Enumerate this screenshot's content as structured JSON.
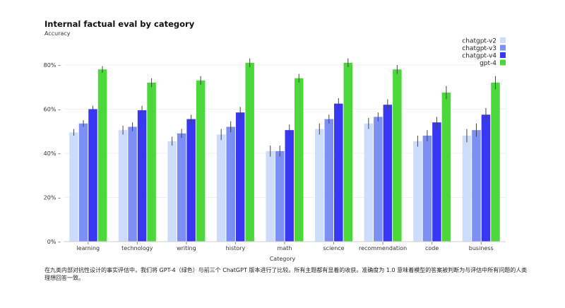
{
  "chart_data": {
    "type": "bar",
    "title": "Internal factual eval by category",
    "ylabel": "Accuracy",
    "xlabel": "Category",
    "ylim": [
      0,
      90
    ],
    "yticks": [
      0,
      20,
      40,
      60,
      80
    ],
    "ytick_labels": [
      "0% –",
      "20% –",
      "40% –",
      "60% –",
      "80% –"
    ],
    "grid": true,
    "legend_position": "top-right",
    "categories": [
      "learning",
      "technology",
      "writing",
      "history",
      "math",
      "science",
      "recommendation",
      "code",
      "business"
    ],
    "series": [
      {
        "name": "chatgpt-v2",
        "color": "#ccdcfa",
        "values": [
          49.5,
          50.5,
          45.5,
          48.5,
          41,
          51,
          53.5,
          45.5,
          48
        ],
        "errors": [
          1.5,
          2,
          2,
          2.5,
          2.5,
          2.5,
          2.5,
          2.5,
          3
        ]
      },
      {
        "name": "chatgpt-v3",
        "color": "#7b8ff4",
        "values": [
          53.5,
          52,
          49,
          52,
          41,
          55.5,
          56.5,
          48,
          50.5
        ],
        "errors": [
          1.5,
          2,
          2,
          2.5,
          2.5,
          2,
          2,
          2.5,
          3
        ]
      },
      {
        "name": "chatgpt-v4",
        "color": "#3838f2",
        "values": [
          60,
          59.5,
          55.5,
          58.5,
          50.5,
          62.5,
          62,
          54,
          57.5
        ],
        "errors": [
          1.5,
          2,
          2,
          2.5,
          2.5,
          2.5,
          2.5,
          2.5,
          3
        ]
      },
      {
        "name": "gpt-4",
        "color": "#4cd83a",
        "values": [
          78,
          72,
          73,
          81,
          74,
          81,
          78,
          67.5,
          72
        ],
        "errors": [
          1.5,
          2,
          2,
          2,
          2,
          2,
          2,
          3,
          3
        ]
      }
    ]
  },
  "caption": "在九类内部对抗性设计的事实评估中，我们将 GPT-4（绿色）与前三个 ChatGPT 版本进行了比较。所有主题都有显着的收获。准确度为 1.0 意味着模型的答案被判断为与评估中所有问题的人类理想回答一致。"
}
